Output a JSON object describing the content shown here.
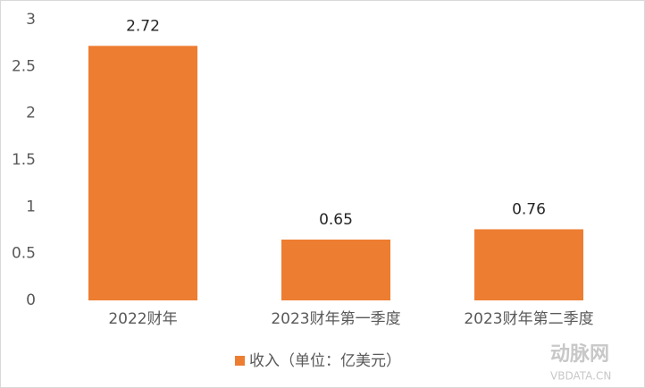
{
  "chart_data": {
    "type": "bar",
    "categories": [
      "2022财年",
      "2023财年第一季度",
      "2023财年第二季度"
    ],
    "series": [
      {
        "name": "收入（单位：亿美元）",
        "color": "#ed7d31",
        "values": [
          2.72,
          0.65,
          0.76
        ]
      }
    ],
    "ylim": [
      0,
      3
    ],
    "yticks": [
      0,
      0.5,
      1,
      1.5,
      2,
      2.5,
      3
    ],
    "grid": false,
    "legend": "bottom",
    "watermark": [
      "动脉网",
      "VBDATA.CN"
    ]
  }
}
